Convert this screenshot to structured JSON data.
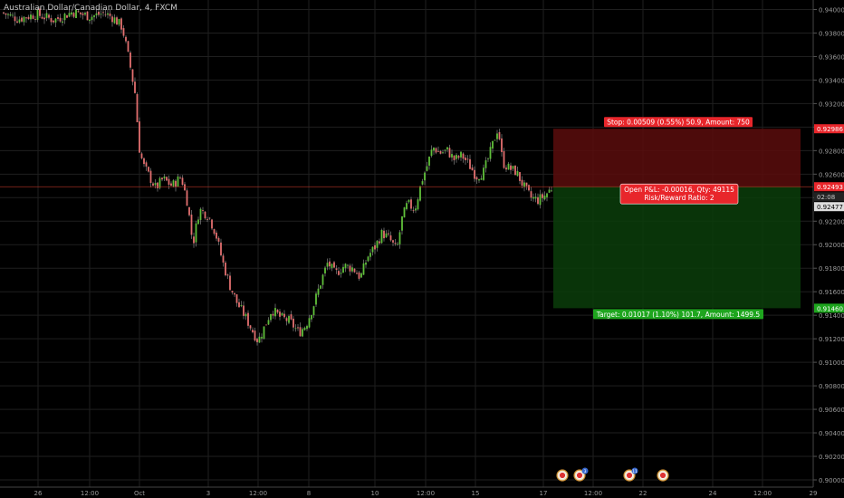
{
  "symbol": {
    "title": "Australian Dollar/Canadian Dollar, 4, FXCM"
  },
  "colors": {
    "background": "#000000",
    "grid": "#1f1f1f",
    "up": "#5fbf3a",
    "down": "#e26f6f",
    "wick": "#9a9a9a",
    "axis_text": "#9a9a9a",
    "stop_zone": "#5a0d0d",
    "target_zone": "#0b3d0b",
    "stop_label_bg": "#e8262b",
    "target_label_bg": "#1ea51e",
    "position_label_bg": "#e8262b",
    "price_line": "#c0392b"
  },
  "chart_data": {
    "type": "candlestick",
    "x_ticks": [
      "26",
      "12:00",
      "Oct",
      "3",
      "12:00",
      "8",
      "10",
      "12:00",
      "15",
      "17",
      "12:00",
      "22",
      "24",
      "12:00",
      "29"
    ],
    "y_ticks": [
      "0.94000",
      "0.93800",
      "0.93600",
      "0.93400",
      "0.93200",
      "0.93000",
      "0.92800",
      "0.92600",
      "0.92400",
      "0.92200",
      "0.92000",
      "0.91800",
      "0.91600",
      "0.91400",
      "0.91200",
      "0.91000",
      "0.90800",
      "0.90600",
      "0.90400",
      "0.90200",
      "0.90000"
    ],
    "ylim": [
      0.9,
      0.9405
    ],
    "price_path": [
      [
        0,
        0.9398
      ],
      [
        20,
        0.9392
      ],
      [
        40,
        0.9396
      ],
      [
        60,
        0.9391
      ],
      [
        80,
        0.9398
      ],
      [
        100,
        0.9394
      ],
      [
        115,
        0.9397
      ],
      [
        125,
        0.9393
      ],
      [
        135,
        0.9385
      ],
      [
        143,
        0.9355
      ],
      [
        150,
        0.9325
      ],
      [
        153,
        0.9285
      ],
      [
        158,
        0.9268
      ],
      [
        165,
        0.9258
      ],
      [
        172,
        0.9248
      ],
      [
        180,
        0.9256
      ],
      [
        190,
        0.925
      ],
      [
        200,
        0.9258
      ],
      [
        207,
        0.9236
      ],
      [
        213,
        0.92
      ],
      [
        220,
        0.923
      ],
      [
        230,
        0.9225
      ],
      [
        238,
        0.921
      ],
      [
        246,
        0.9185
      ],
      [
        254,
        0.9165
      ],
      [
        262,
        0.915
      ],
      [
        270,
        0.914
      ],
      [
        278,
        0.9128
      ],
      [
        285,
        0.9118
      ],
      [
        292,
        0.913
      ],
      [
        300,
        0.9145
      ],
      [
        310,
        0.9138
      ],
      [
        320,
        0.9135
      ],
      [
        330,
        0.9125
      ],
      [
        338,
        0.9132
      ],
      [
        346,
        0.9148
      ],
      [
        355,
        0.917
      ],
      [
        362,
        0.9185
      ],
      [
        370,
        0.9175
      ],
      [
        380,
        0.9182
      ],
      [
        390,
        0.918
      ],
      [
        398,
        0.9172
      ],
      [
        406,
        0.919
      ],
      [
        414,
        0.9198
      ],
      [
        422,
        0.921
      ],
      [
        430,
        0.9205
      ],
      [
        438,
        0.9195
      ],
      [
        444,
        0.9222
      ],
      [
        450,
        0.9235
      ],
      [
        458,
        0.923
      ],
      [
        466,
        0.9255
      ],
      [
        472,
        0.9268
      ],
      [
        478,
        0.9283
      ],
      [
        486,
        0.9278
      ],
      [
        494,
        0.928
      ],
      [
        502,
        0.9272
      ],
      [
        510,
        0.9276
      ],
      [
        518,
        0.9268
      ],
      [
        526,
        0.9258
      ],
      [
        534,
        0.9262
      ],
      [
        540,
        0.9275
      ],
      [
        546,
        0.929
      ],
      [
        550,
        0.93
      ],
      [
        555,
        0.927
      ],
      [
        562,
        0.9265
      ],
      [
        570,
        0.9262
      ],
      [
        578,
        0.925
      ],
      [
        586,
        0.924
      ],
      [
        594,
        0.9238
      ],
      [
        602,
        0.9242
      ],
      [
        610,
        0.9249
      ]
    ],
    "current_price": "0.92493",
    "countdown": "02:08",
    "bid_price": "0.92477",
    "stop_price": "0.92986",
    "target_price": "0.91460",
    "stop_label": "Stop: 0.00509 (0.55%) 50.9, Amount: 750",
    "target_label": "Target: 0.01017 (1.10%) 101.7, Amount: 1499.5",
    "position_label_line1": "Open P&L: -0.00016, Qty: 49115",
    "position_label_line2": "Risk/Reward Ratio: 2",
    "event_markers": [
      {
        "icon": "economic-event-icon",
        "badge": ""
      },
      {
        "icon": "economic-event-icon",
        "badge": "3"
      },
      {
        "icon": "economic-event-icon",
        "badge": "11"
      },
      {
        "icon": "economic-event-icon",
        "badge": ""
      }
    ]
  }
}
